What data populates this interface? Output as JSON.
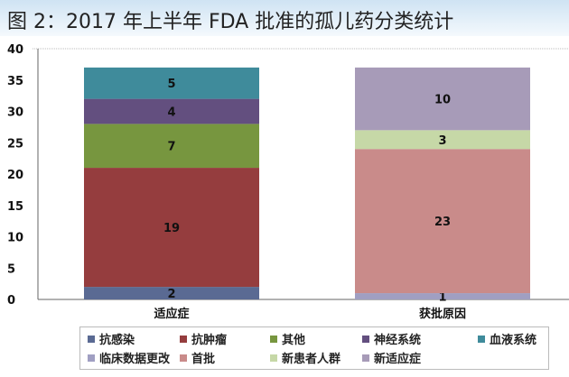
{
  "title": "图 2：2017 年上半年 FDA 批准的孤儿药分类统计",
  "chart_data": {
    "type": "bar",
    "stacked": true,
    "title": "图 2：2017 年上半年 FDA 批准的孤儿药分类统计",
    "categories": [
      "适应症",
      "获批原因"
    ],
    "ylim": [
      0,
      40
    ],
    "yticks": [
      0,
      5,
      10,
      15,
      20,
      25,
      30,
      35,
      40
    ],
    "grid": false,
    "legend_position": "bottom",
    "series": [
      {
        "name": "抗感染",
        "values": [
          2,
          null
        ],
        "color": "#5a6a93"
      },
      {
        "name": "抗肿瘤",
        "values": [
          19,
          null
        ],
        "color": "#953d3e"
      },
      {
        "name": "其他",
        "values": [
          7,
          null
        ],
        "color": "#77963f"
      },
      {
        "name": "神经系统",
        "values": [
          4,
          null
        ],
        "color": "#634f7f"
      },
      {
        "name": "血液系统",
        "values": [
          5,
          null
        ],
        "color": "#3f8b9b"
      },
      {
        "name": "临床数据更改",
        "values": [
          null,
          1
        ],
        "color": "#a09fc2"
      },
      {
        "name": "首批",
        "values": [
          null,
          23
        ],
        "color": "#c98b8a"
      },
      {
        "name": "新患者人群",
        "values": [
          null,
          3
        ],
        "color": "#c6d8a7"
      },
      {
        "name": "新适应症",
        "values": [
          null,
          10
        ],
        "color": "#a79bb8"
      }
    ]
  }
}
